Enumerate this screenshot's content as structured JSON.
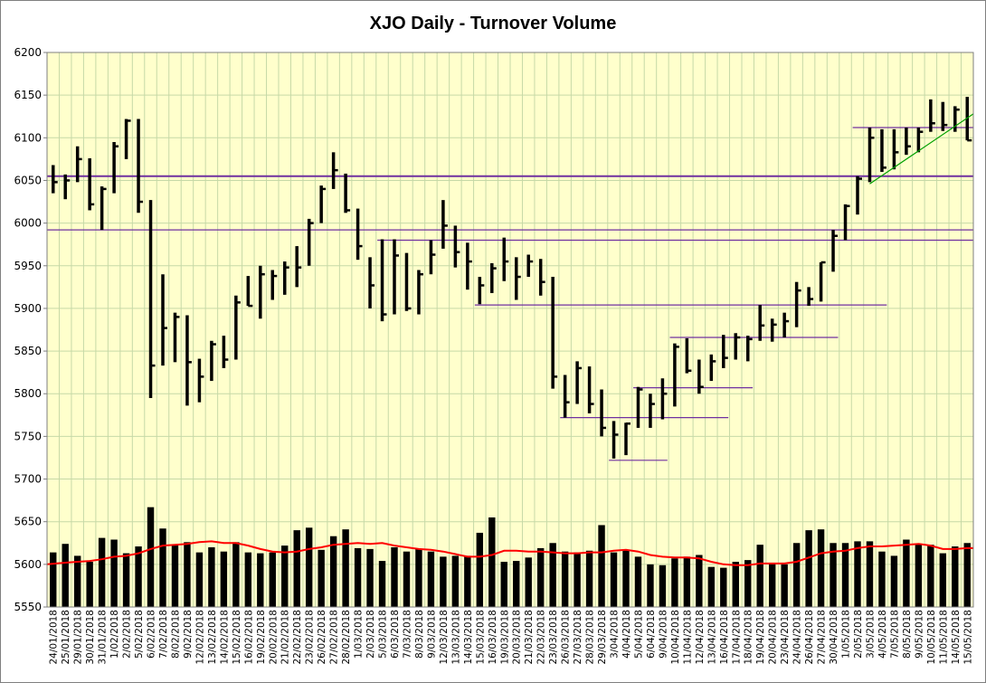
{
  "chart_data": {
    "type": "ohlc",
    "title": "XJO Daily - Turnover Volume",
    "xlabel": "",
    "ylabel": "",
    "ylim": [
      5550,
      6200
    ],
    "ytick_step": 50,
    "grid": true,
    "legend": "none",
    "colors": {
      "plot_background": "#ffffcc",
      "grid_line": "#c6d9a7",
      "bar": "#000000",
      "volume_ma": "#ff0000",
      "support_lines": "#7030a0",
      "trend_line": "#00a000",
      "frame": "#7f7f7f"
    },
    "categories": [
      "24/01/2018",
      "25/01/2018",
      "29/01/2018",
      "30/01/2018",
      "31/01/2018",
      "1/02/2018",
      "2/02/2018",
      "5/02/2018",
      "6/02/2018",
      "7/02/2018",
      "8/02/2018",
      "9/02/2018",
      "12/02/2018",
      "13/02/2018",
      "14/02/2018",
      "15/02/2018",
      "16/02/2018",
      "19/02/2018",
      "20/02/2018",
      "21/02/2018",
      "22/02/2018",
      "23/02/2018",
      "26/02/2018",
      "27/02/2018",
      "28/02/2018",
      "1/03/2018",
      "2/03/2018",
      "5/03/2018",
      "6/03/2018",
      "7/03/2018",
      "8/03/2018",
      "9/03/2018",
      "12/03/2018",
      "13/03/2018",
      "14/03/2018",
      "15/03/2018",
      "16/03/2018",
      "19/03/2018",
      "20/03/2018",
      "21/03/2018",
      "22/03/2018",
      "23/03/2018",
      "26/03/2018",
      "27/03/2018",
      "28/03/2018",
      "29/03/2018",
      "3/04/2018",
      "4/04/2018",
      "5/04/2018",
      "6/04/2018",
      "9/04/2018",
      "10/04/2018",
      "11/04/2018",
      "12/04/2018",
      "13/04/2018",
      "16/04/2018",
      "17/04/2018",
      "18/04/2018",
      "19/04/2018",
      "20/04/2018",
      "23/04/2018",
      "24/04/2018",
      "26/04/2018",
      "27/04/2018",
      "30/04/2018",
      "1/05/2018",
      "2/05/2018",
      "3/05/2018",
      "4/05/2018",
      "7/05/2018",
      "8/05/2018",
      "9/05/2018",
      "10/05/2018",
      "11/05/2018",
      "14/05/2018",
      "15/05/2018"
    ],
    "x_tick_labels": [
      "24/01/2018",
      "25/01/2018",
      "29/01/2018",
      "30/01/2018",
      "31/01/2018",
      "1/02/2018",
      "2/02/2018",
      "5/02/2018",
      "6/02/2018",
      "7/02/2018",
      "8/02/2018",
      "9/02/2018",
      "12/02/2018",
      "13/02/2018",
      "14/02/2018",
      "15/02/2018",
      "16/02/2018",
      "19/02/2018",
      "20/02/2018",
      "21/02/2018",
      "22/02/2018",
      "23/02/2018",
      "26/02/2018",
      "27/02/2018",
      "28/02/2018",
      "1/03/2018",
      "2/03/2018",
      "5/03/2018",
      "6/03/2018",
      "7/03/2018",
      "8/03/2018",
      "9/03/2018",
      "12/03/2018",
      "13/03/2018",
      "14/03/2018",
      "15/03/2018",
      "16/03/2018",
      "19/03/2018",
      "20/03/2018",
      "21/03/2018",
      "22/03/2018",
      "23/03/2018",
      "26/03/2018",
      "27/03/2018",
      "28/03/2018",
      "29/03/2018",
      "3/04/2018",
      "4/04/2018",
      "5/04/2018",
      "6/04/2018",
      "9/04/2018",
      "10/04/2018",
      "11/04/2018",
      "12/04/2018",
      "13/04/2018",
      "16/04/2018",
      "17/04/2018",
      "18/04/2018",
      "19/04/2018",
      "20/04/2018",
      "23/04/2018",
      "24/04/2018",
      "26/04/2018",
      "27/04/2018",
      "30/04/2018",
      "1/05/2018",
      "2/05/2018",
      "3/05/2018",
      "4/05/2018",
      "7/05/2018",
      "8/05/2018",
      "9/05/2018",
      "10/05/2018",
      "11/05/2018",
      "14/05/2018",
      "15/05/2018"
    ],
    "high": [
      6068,
      6057,
      6090,
      6076,
      6043,
      6095,
      6122,
      6122,
      6027,
      5940,
      5895,
      5892,
      5841,
      5862,
      5868,
      5915,
      5938,
      5950,
      5945,
      5955,
      5973,
      6005,
      6044,
      6083,
      6058,
      6017,
      5960,
      5981,
      5981,
      5965,
      5945,
      5980,
      6027,
      5997,
      5977,
      5937,
      5953,
      5983,
      5960,
      5963,
      5958,
      5937,
      5822,
      5838,
      5832,
      5805,
      5768,
      5766,
      5808,
      5800,
      5818,
      5859,
      5865,
      5840,
      5846,
      5869,
      5871,
      5868,
      5904,
      5888,
      5895,
      5931,
      5925,
      5954,
      5992,
      6022,
      6055,
      6112,
      6110,
      6110,
      6112,
      6112,
      6145,
      6142,
      6137,
      6148
    ],
    "low": [
      6035,
      6028,
      6048,
      6015,
      5992,
      6035,
      6075,
      6012,
      5795,
      5833,
      5837,
      5786,
      5790,
      5815,
      5830,
      5840,
      5903,
      5888,
      5910,
      5916,
      5925,
      5950,
      6000,
      6040,
      6012,
      5957,
      5900,
      5885,
      5893,
      5897,
      5893,
      5940,
      5970,
      5948,
      5922,
      5905,
      5918,
      5932,
      5910,
      5937,
      5915,
      5806,
      5772,
      5788,
      5777,
      5750,
      5724,
      5728,
      5760,
      5760,
      5770,
      5785,
      5824,
      5800,
      5815,
      5830,
      5840,
      5838,
      5862,
      5861,
      5866,
      5878,
      5903,
      5908,
      5943,
      5980,
      6010,
      6048,
      6060,
      6063,
      6080,
      6083,
      6107,
      6108,
      6107,
      6097
    ],
    "close": [
      6048,
      6050,
      6075,
      6022,
      6040,
      6090,
      6120,
      6025,
      5833,
      5877,
      5890,
      5837,
      5820,
      5858,
      5840,
      5907,
      5903,
      5940,
      5938,
      5948,
      5948,
      6000,
      6040,
      6062,
      6015,
      5973,
      5927,
      5893,
      5962,
      5900,
      5940,
      5963,
      5997,
      5966,
      5955,
      5927,
      5947,
      5955,
      5937,
      5955,
      5931,
      5820,
      5790,
      5830,
      5788,
      5760,
      5752,
      5765,
      5805,
      5788,
      5800,
      5855,
      5827,
      5808,
      5838,
      5842,
      5866,
      5864,
      5880,
      5881,
      5885,
      5921,
      5911,
      5954,
      5985,
      6020,
      6052,
      6100,
      6065,
      6083,
      6090,
      6107,
      6117,
      6115,
      6133,
      6097
    ],
    "volume": [
      5614,
      5624,
      5610,
      5603,
      5631,
      5629,
      5613,
      5621,
      5667,
      5642,
      5623,
      5626,
      5614,
      5620,
      5615,
      5626,
      5614,
      5613,
      5614,
      5622,
      5640,
      5643,
      5617,
      5633,
      5641,
      5619,
      5618,
      5604,
      5620,
      5615,
      5618,
      5615,
      5609,
      5610,
      5610,
      5637,
      5655,
      5603,
      5604,
      5608,
      5619,
      5625,
      5615,
      5614,
      5616,
      5646,
      5614,
      5617,
      5609,
      5600,
      5599,
      5607,
      5609,
      5611,
      5597,
      5596,
      5603,
      5605,
      5623,
      5601,
      5600,
      5625,
      5640,
      5641,
      5625,
      5625,
      5627,
      5627,
      5615,
      5610,
      5629,
      5624,
      5623,
      5613,
      5621,
      5625
    ],
    "volume_moving_average": [
      5600,
      5602,
      5603,
      5604,
      5606,
      5609,
      5610,
      5613,
      5618,
      5622,
      5623,
      5624,
      5626,
      5627,
      5625,
      5625,
      5622,
      5618,
      5615,
      5614,
      5615,
      5618,
      5620,
      5623,
      5624,
      5625,
      5624,
      5625,
      5622,
      5620,
      5618,
      5617,
      5615,
      5612,
      5609,
      5609,
      5611,
      5616,
      5616,
      5615,
      5615,
      5614,
      5613,
      5613,
      5614,
      5614,
      5616,
      5617,
      5615,
      5611,
      5609,
      5608,
      5608,
      5607,
      5603,
      5600,
      5599,
      5599,
      5601,
      5601,
      5601,
      5603,
      5608,
      5613,
      5615,
      5616,
      5619,
      5621,
      5621,
      5622,
      5623,
      5624,
      5622,
      5618,
      5618,
      5619
    ],
    "horizontal_levels": [
      {
        "value": 6055,
        "from_index": 0,
        "to_index": 75,
        "extend_to_edge": true,
        "thick": true
      },
      {
        "value": 5992,
        "from_index": 0,
        "to_index": 75,
        "extend_to_edge": true,
        "thick": false
      },
      {
        "value": 5980,
        "from_index": 27,
        "to_index": 75,
        "extend_to_edge": true,
        "thick": false
      },
      {
        "value": 5904,
        "from_index": 35,
        "to_index": 68,
        "extend_to_edge": false,
        "thick": false
      },
      {
        "value": 5866,
        "from_index": 51,
        "to_index": 64,
        "extend_to_edge": false,
        "thick": false
      },
      {
        "value": 5807,
        "from_index": 48,
        "to_index": 57,
        "extend_to_edge": false,
        "thick": false
      },
      {
        "value": 5772,
        "from_index": 42,
        "to_index": 55,
        "extend_to_edge": false,
        "thick": false
      },
      {
        "value": 5722,
        "from_index": 46,
        "to_index": 50,
        "extend_to_edge": false,
        "thick": false
      },
      {
        "value": 6112,
        "from_index": 66,
        "to_index": 75,
        "extend_to_edge": true,
        "thick": false
      }
    ],
    "trend_lines": [
      {
        "from_index": 67,
        "from_value": 6046,
        "to_index": 77.5,
        "to_value": 6128
      }
    ]
  }
}
